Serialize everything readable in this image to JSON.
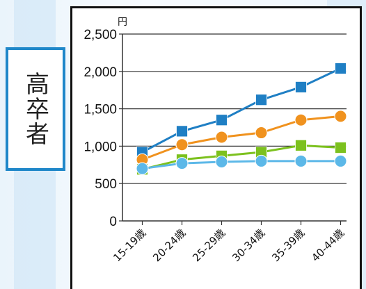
{
  "side_label": "高卒者",
  "chart_data": {
    "type": "line",
    "unit_label": "円",
    "categories": [
      "15-19歳",
      "20-24歳",
      "25-29歳",
      "30-34歳",
      "35-39歳",
      "40-44歳"
    ],
    "ylim": [
      0,
      2500
    ],
    "y_ticks": [
      "0",
      "500",
      "1,000",
      "1,500",
      "2,000",
      "2,500"
    ],
    "y_tick_values": [
      0,
      500,
      1000,
      1500,
      2000,
      2500
    ],
    "grid": true,
    "series": [
      {
        "color": "#1f7fc4",
        "marker": "square",
        "values": [
          920,
          1200,
          1350,
          1620,
          1790,
          2040
        ]
      },
      {
        "color": "#f0921e",
        "marker": "circle",
        "values": [
          820,
          1020,
          1120,
          1180,
          1350,
          1400
        ]
      },
      {
        "color": "#7cc11e",
        "marker": "square",
        "values": [
          690,
          820,
          870,
          920,
          1010,
          980
        ]
      },
      {
        "color": "#5cb8e8",
        "marker": "circle",
        "values": [
          700,
          770,
          790,
          800,
          800,
          800
        ]
      }
    ]
  }
}
